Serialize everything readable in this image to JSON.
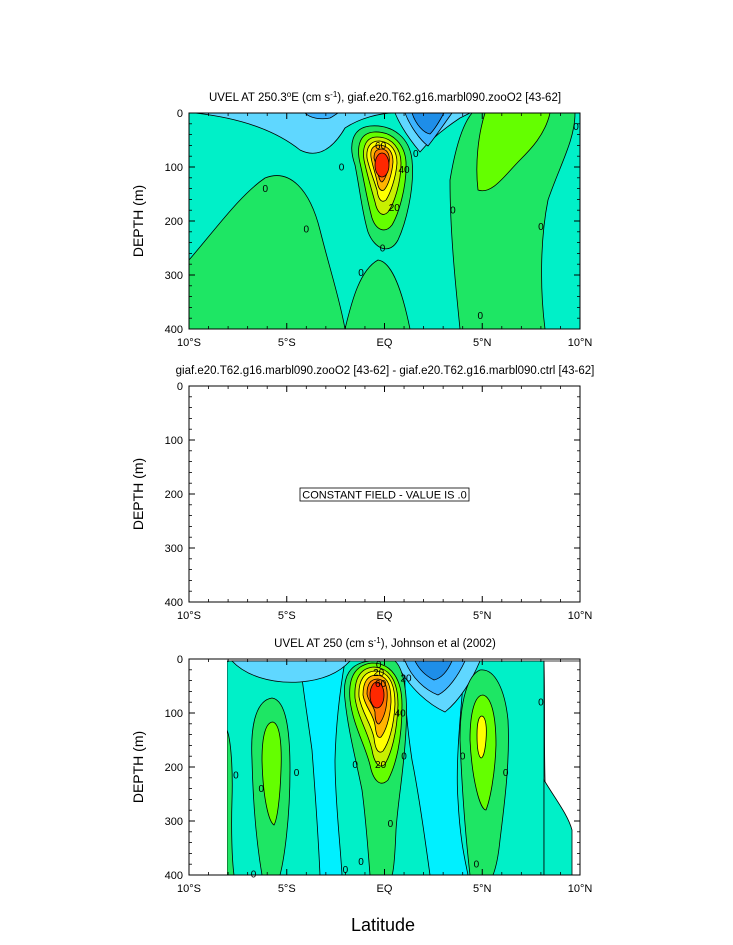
{
  "chart_data": [
    {
      "type": "contour",
      "title": "UVEL AT 250.3°E (cm s-1), giaf.e20.T62.g16.marbl090.zooO2 [43-62]",
      "title_parts": {
        "pre": "UVEL AT 250.3",
        "deg": "o",
        "mid": "E (cm s",
        "sup": "-1",
        "post": "), giaf.e20.T62.g16.marbl090.zooO2 [43-62]"
      },
      "ylabel": "DEPTH (m)",
      "xlim": [
        -10,
        10
      ],
      "ylim": [
        0,
        400
      ],
      "x_ticks": [
        "10°S",
        "5°S",
        "EQ",
        "5°N",
        "10°N"
      ],
      "y_ticks": [
        "0",
        "100",
        "200",
        "300",
        "400"
      ],
      "contour_labels": [
        {
          "x": -0.2,
          "y": 60,
          "text": "60"
        },
        {
          "x": 1.0,
          "y": 105,
          "text": "40"
        },
        {
          "x": 0.5,
          "y": 175,
          "text": "20"
        },
        {
          "x": -2.2,
          "y": 100,
          "text": "0"
        },
        {
          "x": -6.1,
          "y": 140,
          "text": "0"
        },
        {
          "x": -4.0,
          "y": 215,
          "text": "0"
        },
        {
          "x": -0.1,
          "y": 250,
          "text": "0"
        },
        {
          "x": -1.2,
          "y": 295,
          "text": "0"
        },
        {
          "x": 1.6,
          "y": 75,
          "text": "0"
        },
        {
          "x": 3.5,
          "y": 180,
          "text": "0"
        },
        {
          "x": 4.9,
          "y": 375,
          "text": "0"
        },
        {
          "x": 8.0,
          "y": 210,
          "text": "0"
        },
        {
          "x": 9.8,
          "y": 25,
          "text": "0"
        }
      ]
    },
    {
      "type": "contour",
      "title": "giaf.e20.T62.g16.marbl090.zooO2 [43-62] - giaf.e20.T62.g16.marbl090.ctrl [43-62]",
      "ylabel": "DEPTH (m)",
      "xlim": [
        -10,
        10
      ],
      "ylim": [
        0,
        400
      ],
      "x_ticks": [
        "10°S",
        "5°S",
        "EQ",
        "5°N",
        "10°N"
      ],
      "y_ticks": [
        "0",
        "100",
        "200",
        "300",
        "400"
      ],
      "annotation": "CONSTANT FIELD - VALUE IS .0",
      "contour_labels": []
    },
    {
      "type": "contour",
      "title": "UVEL AT 250 (cm s-1), Johnson et al (2002)",
      "title_parts": {
        "pre": "UVEL AT 250 (cm s",
        "sup": "-1",
        "post": "), Johnson et al (2002)"
      },
      "ylabel": "DEPTH (m)",
      "xlabel": "Latitude",
      "xlim": [
        -10,
        10
      ],
      "ylim": [
        0,
        400
      ],
      "x_ticks": [
        "10°S",
        "5°S",
        "EQ",
        "5°N",
        "10°N"
      ],
      "y_ticks": [
        "0",
        "100",
        "200",
        "300",
        "400"
      ],
      "contour_labels": [
        {
          "x": -0.3,
          "y": 10,
          "text": "0"
        },
        {
          "x": -0.3,
          "y": 25,
          "text": "20"
        },
        {
          "x": -0.2,
          "y": 45,
          "text": "60"
        },
        {
          "x": 0.8,
          "y": 100,
          "text": "40"
        },
        {
          "x": -0.2,
          "y": 195,
          "text": "20"
        },
        {
          "x": 1.1,
          "y": 35,
          "text": "20"
        },
        {
          "x": -7.6,
          "y": 215,
          "text": "0"
        },
        {
          "x": -6.3,
          "y": 240,
          "text": "0"
        },
        {
          "x": -4.5,
          "y": 210,
          "text": "0"
        },
        {
          "x": -1.5,
          "y": 195,
          "text": "0"
        },
        {
          "x": 1.0,
          "y": 180,
          "text": "0"
        },
        {
          "x": 0.3,
          "y": 305,
          "text": "0"
        },
        {
          "x": -2.0,
          "y": 390,
          "text": "0"
        },
        {
          "x": -1.2,
          "y": 375,
          "text": "0"
        },
        {
          "x": -6.7,
          "y": 398,
          "text": "0"
        },
        {
          "x": 4.0,
          "y": 180,
          "text": "0"
        },
        {
          "x": 6.2,
          "y": 210,
          "text": "0"
        },
        {
          "x": 4.7,
          "y": 380,
          "text": "0"
        },
        {
          "x": 8.0,
          "y": 80,
          "text": "0"
        }
      ]
    }
  ],
  "colors": {
    "deep_blue": "#1e8ee8",
    "blue": "#3cb4ff",
    "light_blue": "#5fd7ff",
    "cyan": "#00f0ff",
    "aqua": "#00f0c8",
    "green": "#1ee664",
    "bright_green": "#64ff00",
    "yellow_green": "#c8f000",
    "yellow": "#ffff00",
    "orange": "#ffb400",
    "red": "#ff2800"
  }
}
